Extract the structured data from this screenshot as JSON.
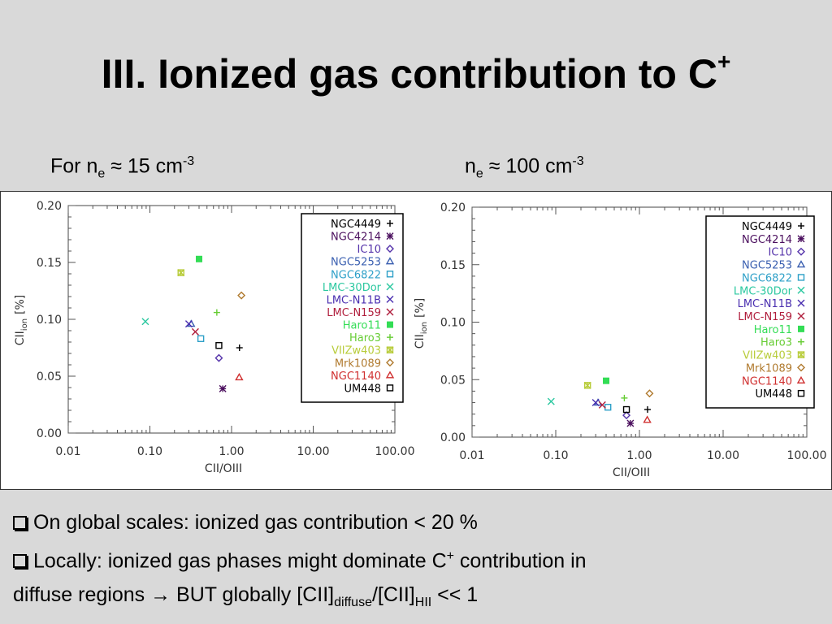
{
  "slide": {
    "title": "III. Ionized gas contribution to C",
    "title_sup": "+",
    "left_condition": {
      "prefix": "For n",
      "sub": "e",
      "mid": " ≈ 15 cm",
      "sup": "-3"
    },
    "right_condition": {
      "prefix": "n",
      "sub": "e",
      "mid": " ≈ 100 cm",
      "sup": "-3"
    },
    "bullet1": "On global scales: ionized gas contribution < 20 %",
    "bullet2_a": "Locally: ionized gas phases might dominate C",
    "bullet2_sup": "+",
    "bullet2_b": " contribution in",
    "bullet3_a": "diffuse regions ",
    "bullet3_arrow": "→",
    "bullet3_b": " BUT globally [CII]",
    "bullet3_sub1": "diffuse",
    "bullet3_c": "/[CII]",
    "bullet3_sub2": "HII",
    "bullet3_d": " << 1"
  },
  "chart_data": [
    {
      "type": "scatter",
      "xlabel": "CII/OIII",
      "ylabel_main": "CII",
      "ylabel_sub": "ion",
      "ylabel_unit": "[%]",
      "xscale": "log",
      "xlim": [
        0.01,
        100
      ],
      "ylim": [
        0,
        0.2
      ],
      "xticks": [
        "0.01",
        "0.10",
        "1.00",
        "10.00",
        "100.00"
      ],
      "yticks": [
        "0.00",
        "0.05",
        "0.10",
        "0.15",
        "0.20"
      ],
      "legend_position": "top-right",
      "series": [
        {
          "name": "NGC4449",
          "marker": "plus",
          "color": "#000000",
          "x": 1.25,
          "y": 0.075
        },
        {
          "name": "NGC4214",
          "marker": "asterisk",
          "color": "#4b0f5e",
          "x": 0.78,
          "y": 0.039
        },
        {
          "name": "IC10",
          "marker": "diamond",
          "color": "#5533aa",
          "x": 0.7,
          "y": 0.066
        },
        {
          "name": "NGC5253",
          "marker": "triangle",
          "color": "#3a5fb0",
          "x": 0.32,
          "y": 0.096
        },
        {
          "name": "NGC6822",
          "marker": "square",
          "color": "#2ea0c8",
          "x": 0.42,
          "y": 0.083
        },
        {
          "name": "LMC-30Dor",
          "marker": "x",
          "color": "#2cc8a0",
          "x": 0.088,
          "y": 0.098
        },
        {
          "name": "LMC-N11B",
          "marker": "x",
          "color": "#4a2fb0",
          "x": 0.3,
          "y": 0.096
        },
        {
          "name": "LMC-N159",
          "marker": "x",
          "color": "#b01e3c",
          "x": 0.36,
          "y": 0.089
        },
        {
          "name": "Haro11",
          "marker": "filled-square",
          "color": "#33dd55",
          "x": 0.4,
          "y": 0.153
        },
        {
          "name": "Haro3",
          "marker": "plus",
          "color": "#66cc33",
          "x": 0.66,
          "y": 0.106
        },
        {
          "name": "VIIZw403",
          "marker": "asterisk-square",
          "color": "#b8cc3a",
          "x": 0.24,
          "y": 0.141
        },
        {
          "name": "Mrk1089",
          "marker": "diamond",
          "color": "#b07a2e",
          "x": 1.32,
          "y": 0.121
        },
        {
          "name": "NGC1140",
          "marker": "triangle",
          "color": "#d03030",
          "x": 1.24,
          "y": 0.049
        },
        {
          "name": "UM448",
          "marker": "square",
          "color": "#000000",
          "x": 0.7,
          "y": 0.077
        }
      ]
    },
    {
      "type": "scatter",
      "xlabel": "CII/OIII",
      "ylabel_main": "CII",
      "ylabel_sub": "ion",
      "ylabel_unit": "[%]",
      "xscale": "log",
      "xlim": [
        0.01,
        100
      ],
      "ylim": [
        0,
        0.2
      ],
      "xticks": [
        "0.01",
        "0.10",
        "1.00",
        "10.00",
        "100.00"
      ],
      "yticks": [
        "0.00",
        "0.05",
        "0.10",
        "0.15",
        "0.20"
      ],
      "legend_position": "top-right",
      "series": [
        {
          "name": "NGC4449",
          "marker": "plus",
          "color": "#000000",
          "x": 1.25,
          "y": 0.024
        },
        {
          "name": "NGC4214",
          "marker": "asterisk",
          "color": "#4b0f5e",
          "x": 0.78,
          "y": 0.012
        },
        {
          "name": "IC10",
          "marker": "diamond",
          "color": "#5533aa",
          "x": 0.7,
          "y": 0.019
        },
        {
          "name": "NGC5253",
          "marker": "triangle",
          "color": "#3a5fb0",
          "x": 0.32,
          "y": 0.03
        },
        {
          "name": "NGC6822",
          "marker": "square",
          "color": "#2ea0c8",
          "x": 0.42,
          "y": 0.026
        },
        {
          "name": "LMC-30Dor",
          "marker": "x",
          "color": "#2cc8a0",
          "x": 0.088,
          "y": 0.031
        },
        {
          "name": "LMC-N11B",
          "marker": "x",
          "color": "#4a2fb0",
          "x": 0.3,
          "y": 0.03
        },
        {
          "name": "LMC-N159",
          "marker": "x",
          "color": "#b01e3c",
          "x": 0.36,
          "y": 0.028
        },
        {
          "name": "Haro11",
          "marker": "filled-square",
          "color": "#33dd55",
          "x": 0.4,
          "y": 0.049
        },
        {
          "name": "Haro3",
          "marker": "plus",
          "color": "#66cc33",
          "x": 0.66,
          "y": 0.034
        },
        {
          "name": "VIIZw403",
          "marker": "asterisk-square",
          "color": "#b8cc3a",
          "x": 0.24,
          "y": 0.045
        },
        {
          "name": "Mrk1089",
          "marker": "diamond",
          "color": "#b07a2e",
          "x": 1.32,
          "y": 0.038
        },
        {
          "name": "NGC1140",
          "marker": "triangle",
          "color": "#d03030",
          "x": 1.24,
          "y": 0.015
        },
        {
          "name": "UM448",
          "marker": "square",
          "color": "#000000",
          "x": 0.7,
          "y": 0.024
        }
      ]
    }
  ]
}
